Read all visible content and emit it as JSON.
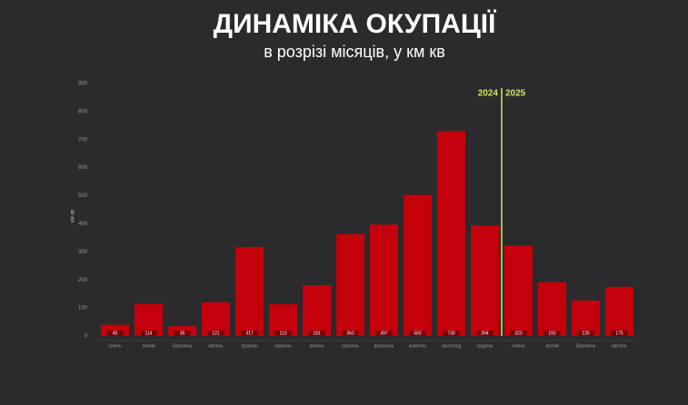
{
  "chart_data": {
    "type": "bar",
    "title": "ДИНАМІКА ОКУПАЦІЇ",
    "subtitle": "в розрізі місяців, у км кв",
    "y_label": "км кв",
    "categories": [
      "січень",
      "лютий",
      "березень",
      "квітень",
      "травень",
      "червень",
      "липень",
      "серпень",
      "вересень",
      "жовтень",
      "листопад",
      "грудень",
      "січень",
      "лютий",
      "березень",
      "квітень"
    ],
    "values": [
      40,
      114,
      35,
      121,
      317,
      113,
      181,
      363,
      397,
      503,
      730,
      394,
      323,
      192,
      126,
      175
    ],
    "color": "#c4000b",
    "ylim": [
      0,
      900
    ],
    "yticks": [
      0,
      100,
      200,
      300,
      400,
      500,
      600,
      700,
      800,
      900
    ],
    "grid": false,
    "annotations": [
      {
        "label": "2024"
      },
      {
        "label": "2025"
      }
    ],
    "annotation_color": "#d7e35a"
  }
}
